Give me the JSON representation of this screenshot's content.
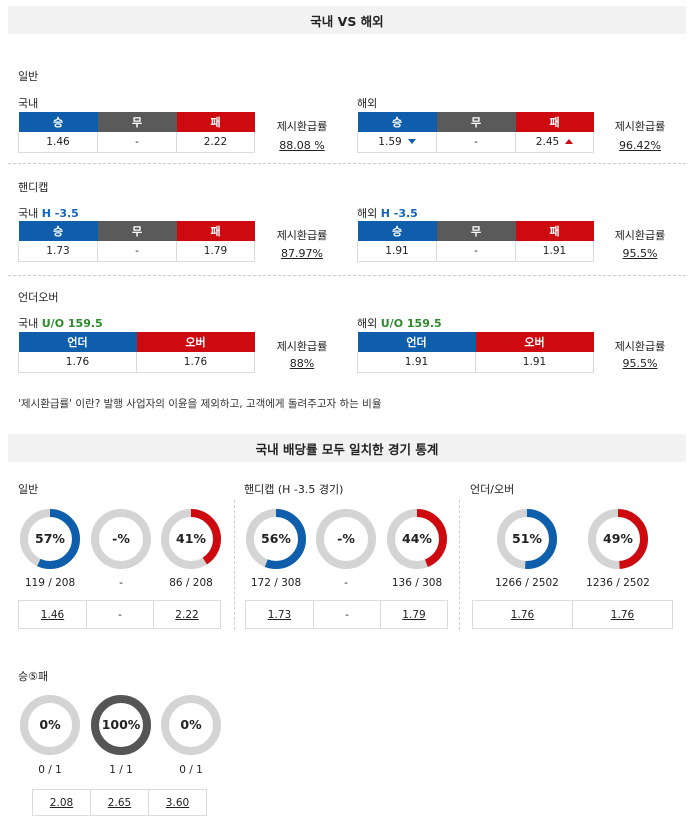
{
  "header1": "국내 VS 해외",
  "header2": "국내 배당률 모두 일치한 경기 통계",
  "odds": {
    "general": {
      "title": "일반",
      "dom": {
        "caption": "국내",
        "h": [
          "승",
          "무",
          "패"
        ],
        "v": [
          "1.46",
          "-",
          "2.22"
        ],
        "ret_label": "제시환급률",
        "ret": "88.08 %"
      },
      "for": {
        "caption": "해외",
        "h": [
          "승",
          "무",
          "패"
        ],
        "v": [
          "1.59",
          "-",
          "2.45"
        ],
        "ret_label": "제시환급률",
        "ret": "96.42%"
      }
    },
    "handicap": {
      "title": "핸디캡",
      "dom": {
        "caption": "국내",
        "tag": "H -3.5",
        "h": [
          "승",
          "무",
          "패"
        ],
        "v": [
          "1.73",
          "-",
          "1.79"
        ],
        "ret_label": "제시환급률",
        "ret": "87.97%"
      },
      "for": {
        "caption": "해외",
        "tag": "H -3.5",
        "h": [
          "승",
          "무",
          "패"
        ],
        "v": [
          "1.91",
          "-",
          "1.91"
        ],
        "ret_label": "제시환급률",
        "ret": "95.5%"
      }
    },
    "ou": {
      "title": "언더오버",
      "dom": {
        "caption": "국내",
        "tag": "U/O 159.5",
        "h": [
          "언더",
          "오버"
        ],
        "v": [
          "1.76",
          "1.76"
        ],
        "ret_label": "제시환급률",
        "ret": "88%"
      },
      "for": {
        "caption": "해외",
        "tag": "U/O 159.5",
        "h": [
          "언더",
          "오버"
        ],
        "v": [
          "1.91",
          "1.91"
        ],
        "ret_label": "제시환급률",
        "ret": "95.5%"
      }
    }
  },
  "note": "'제시환급률' 이란? 발행 사업자의 이윤을 제외하고, 고객에게 돌려주고자 하는 비율",
  "stats": {
    "general": {
      "title": "일반",
      "donuts": [
        {
          "label": "57%",
          "pct": 57,
          "color": "#0f5eab",
          "count": "119 / 208"
        },
        {
          "label": "-%",
          "pct": 0,
          "color": "#cccccc",
          "count": "-"
        },
        {
          "label": "41%",
          "pct": 41,
          "color": "#cc0a10",
          "count": "86 / 208"
        }
      ],
      "odds": [
        "1.46",
        "-",
        "2.22"
      ]
    },
    "handicap": {
      "title": "핸디캡 (H -3.5 경기)",
      "donuts": [
        {
          "label": "56%",
          "pct": 56,
          "color": "#0f5eab",
          "count": "172 / 308"
        },
        {
          "label": "-%",
          "pct": 0,
          "color": "#cccccc",
          "count": "-"
        },
        {
          "label": "44%",
          "pct": 44,
          "color": "#cc0a10",
          "count": "136 / 308"
        }
      ],
      "odds": [
        "1.73",
        "-",
        "1.79"
      ]
    },
    "ou": {
      "title": "언더/오버",
      "donuts": [
        {
          "label": "51%",
          "pct": 51,
          "color": "#0f5eab",
          "count": "1266 / 2502"
        },
        {
          "label": "49%",
          "pct": 49,
          "color": "#cc0a10",
          "count": "1236 / 2502"
        }
      ],
      "odds": [
        "1.76",
        "1.76"
      ]
    },
    "win5": {
      "title": "승⑤패",
      "donuts": [
        {
          "label": "0%",
          "pct": 0,
          "color": "#cccccc",
          "count": "0 / 1"
        },
        {
          "label": "100%",
          "pct": 100,
          "color": "#555555",
          "count": "1 / 1"
        },
        {
          "label": "0%",
          "pct": 0,
          "color": "#cccccc",
          "count": "0 / 1"
        }
      ],
      "odds": [
        "2.08",
        "2.65",
        "3.60"
      ]
    }
  }
}
